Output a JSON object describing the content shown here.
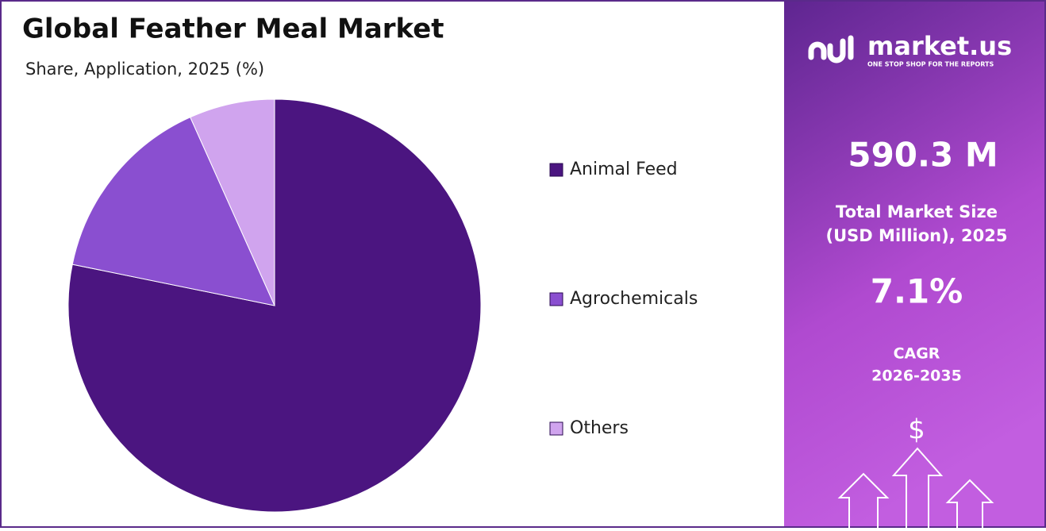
{
  "chart_data": {
    "type": "pie",
    "title": "Global Feather Meal Market",
    "subtitle": "Share, Application, 2025 (%)",
    "categories": [
      "Animal Feed",
      "Agrochemicals",
      "Others"
    ],
    "values": [
      78.2,
      15.1,
      6.7
    ],
    "colors": [
      "#4b1580",
      "#8a4fd0",
      "#d0a4ee"
    ]
  },
  "sidebar": {
    "brand": "market.us",
    "tagline": "ONE STOP SHOP FOR THE REPORTS",
    "market_size": "590.3 M",
    "market_size_label": [
      "Total Market Size",
      "(USD Million), 2025"
    ],
    "cagr": "7.1%",
    "cagr_label": [
      "CAGR",
      "2026-2035"
    ],
    "currency_symbol": "$"
  }
}
